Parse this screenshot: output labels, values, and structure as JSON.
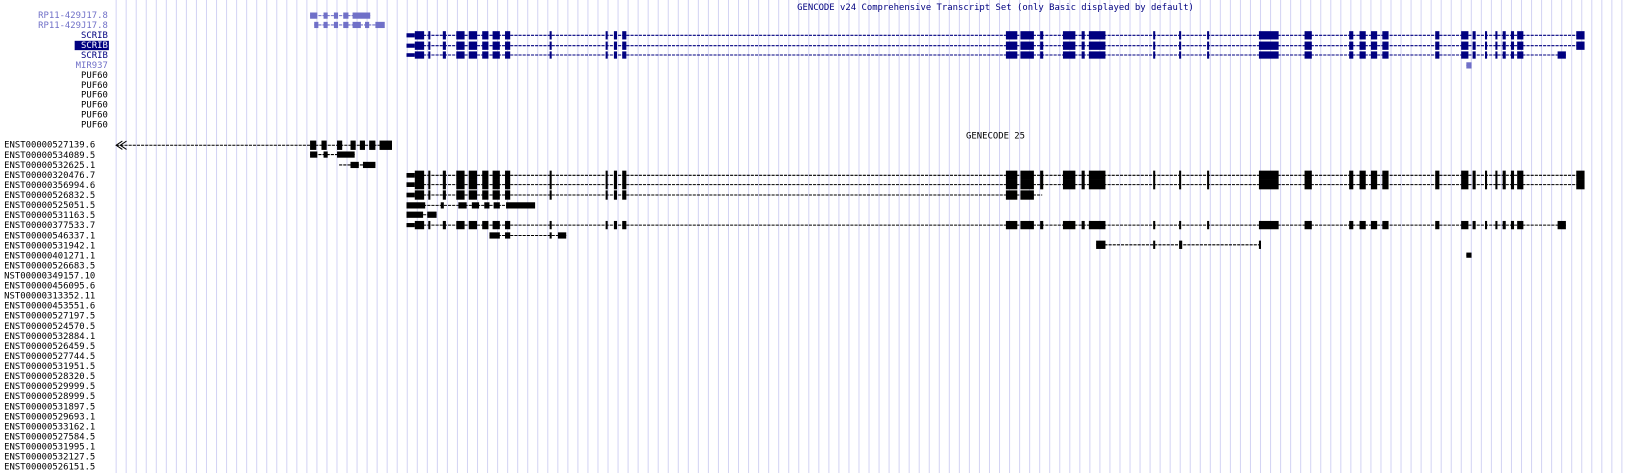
{
  "tracks": [
    {
      "title": "GENCODE v24 Comprehensive Transcript Set (only Basic displayed by default)",
      "labels": [
        "RP11-429J17.8",
        "RP11-429J17.8",
        "SCRIB",
        "SCRIB",
        "SCRIB",
        "MIR937",
        "PUF60",
        "PUF60",
        "PUF60",
        "PUF60",
        "PUF60",
        "PUF60"
      ]
    },
    {
      "title": "GENECODE 25",
      "labels": [
        "ENST00000527139.6",
        "ENST00000534089.5",
        "ENST00000532625.1",
        "ENST00000320476.7",
        "ENST00000356994.6",
        "ENST00000526832.5",
        "ENST00000525051.5",
        "ENST00000531163.5",
        "ENST00000377533.7",
        "ENST00000546337.1",
        "ENST00000531942.1",
        "ENST00000401271.1",
        "ENST00000526683.5",
        "NST00000349157.10",
        "ENST00000456095.6",
        "NST00000313352.11",
        "ENST00000453551.6",
        "ENST00000527197.5",
        "ENST00000524570.5",
        "ENST00000532884.1",
        "ENST00000526459.5",
        "ENST00000527744.5",
        "ENST00000531951.5",
        "ENST00000528320.5",
        "ENST00000529999.5",
        "ENST00000528999.5",
        "ENST00000531897.5",
        "ENST00000529693.1",
        "ENST00000533162.1",
        "ENST00000527584.5",
        "ENST00000531995.1",
        "ENST00000532127.5",
        "ENST00000526151.5"
      ]
    }
  ]
}
